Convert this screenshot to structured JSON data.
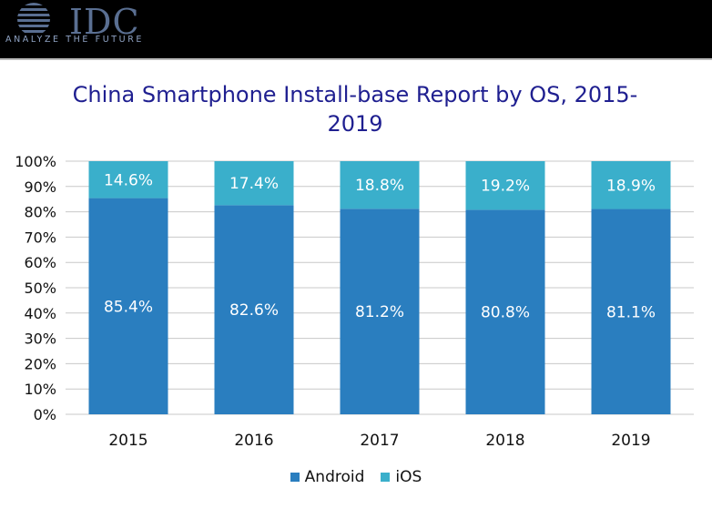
{
  "header": {
    "brand": "IDC",
    "tagline": "ANALYZE THE FUTURE"
  },
  "colors": {
    "android": "#2a7ebf",
    "ios": "#3aafcb",
    "brand": "#5a6f92"
  },
  "chart_data": {
    "type": "bar",
    "stacked": true,
    "title": "China Smartphone Install-base Report by OS, 2015-2019",
    "categories": [
      "2015",
      "2016",
      "2017",
      "2018",
      "2019"
    ],
    "series": [
      {
        "name": "Android",
        "values": [
          85.4,
          82.6,
          81.2,
          80.8,
          81.1
        ],
        "labels": [
          "85.4%",
          "82.6%",
          "81.2%",
          "80.8%",
          "81.1%"
        ]
      },
      {
        "name": "iOS",
        "values": [
          14.6,
          17.4,
          18.8,
          19.2,
          18.9
        ],
        "labels": [
          "14.6%",
          "17.4%",
          "18.8%",
          "19.2%",
          "18.9%"
        ]
      }
    ],
    "y_ticks": [
      "0%",
      "10%",
      "20%",
      "30%",
      "40%",
      "50%",
      "60%",
      "70%",
      "80%",
      "90%",
      "100%"
    ],
    "ylim": [
      0,
      100
    ],
    "grid": true,
    "legend_position": "bottom"
  }
}
